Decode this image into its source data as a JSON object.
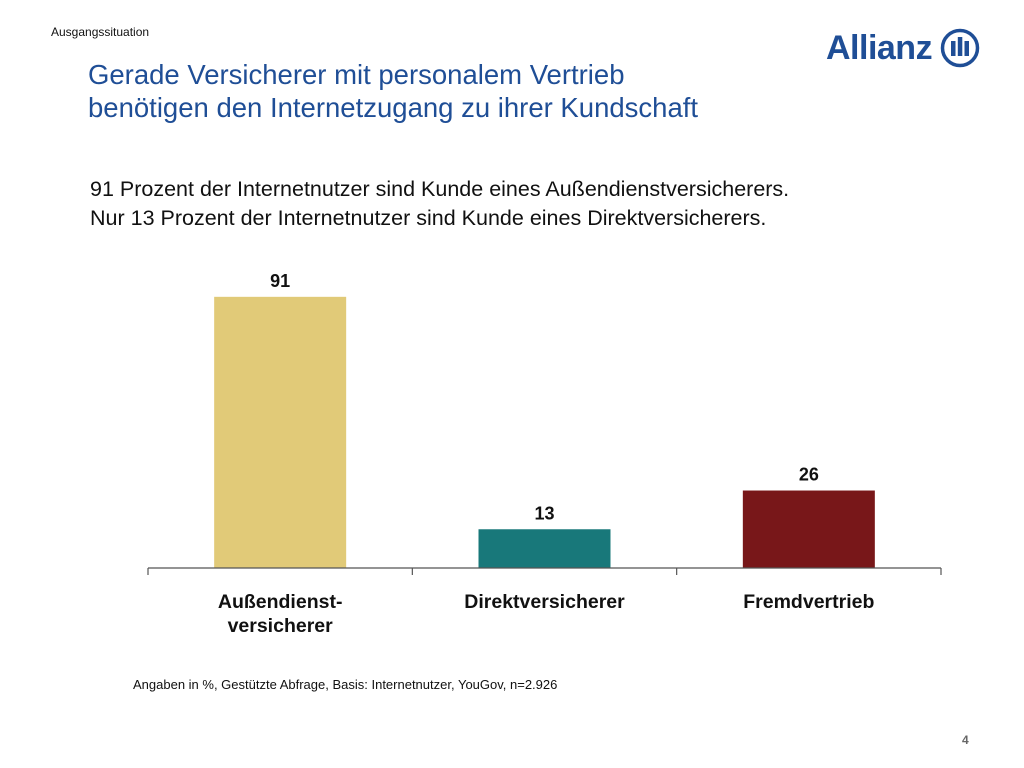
{
  "header": {
    "section": "Ausgangssituation",
    "title_lines": [
      "Gerade Versicherer mit personalem  Vertrieb",
      "benötigen den Internetzugang zu ihrer Kundschaft"
    ],
    "logo_text": "Allianz",
    "logo_icon": "allianz-eagle-icon"
  },
  "subtitle": {
    "line1": "91 Prozent der Internetnutzer sind Kunde eines Außendienstversicherers.",
    "line2": "Nur 13 Prozent der Internetnutzer sind Kunde eines Direktversicherers."
  },
  "chart_data": {
    "type": "bar",
    "categories": [
      "Außendienst-\nversicherer",
      "Direktversicherer",
      "Fremdvertrieb"
    ],
    "values": [
      91,
      13,
      26
    ],
    "colors": [
      "#e1ca78",
      "#18787a",
      "#781719"
    ],
    "ylim": [
      0,
      100
    ],
    "grid": false,
    "legend": "none",
    "data_labels": true
  },
  "footnote": "Angaben in %, Gestützte Abfrage, Basis: Internetnutzer, YouGov, n=2.926",
  "page_number": "4"
}
